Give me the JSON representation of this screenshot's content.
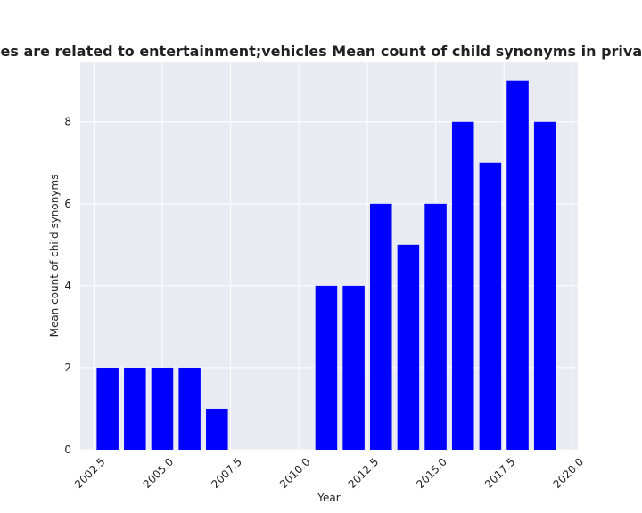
{
  "chart_data": {
    "type": "bar",
    "title": "Categories are related to entertainment;vehicles Mean count of child synonyms in privacy policies",
    "xlabel": "Year",
    "ylabel": "Mean count of child synonyms",
    "x": [
      2003,
      2004,
      2005,
      2006,
      2007,
      2011,
      2012,
      2013,
      2014,
      2015,
      2016,
      2017,
      2018,
      2019
    ],
    "values": [
      2,
      2,
      2,
      2,
      1,
      4,
      4,
      6,
      5,
      6,
      8,
      7,
      9,
      8
    ],
    "xlim": [
      2002.0,
      2020.2
    ],
    "ylim": [
      0,
      9.45
    ],
    "xticks": [
      2002.5,
      2005.0,
      2007.5,
      2010.0,
      2012.5,
      2015.0,
      2017.5,
      2020.0
    ],
    "xtick_labels": [
      "2002.5",
      "2005.0",
      "2007.5",
      "2010.0",
      "2012.5",
      "2015.0",
      "2017.5",
      "2020.0"
    ],
    "yticks": [
      0,
      2,
      4,
      6,
      8
    ],
    "ytick_labels": [
      "0",
      "2",
      "4",
      "6",
      "8"
    ],
    "bar_width_years": 0.8,
    "grid": true,
    "legend": "none"
  },
  "colors": {
    "bar": "#0000ff",
    "plot_background": "#eaeaf2",
    "grid": "#ffffff",
    "text": "#222222"
  }
}
